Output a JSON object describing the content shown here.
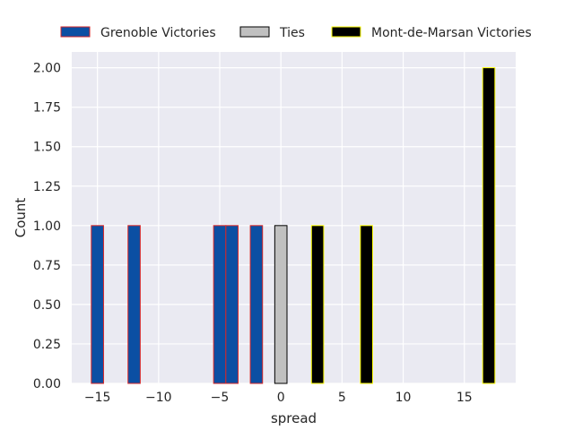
{
  "chart_data": {
    "type": "bar",
    "xlabel": "spread",
    "ylabel": "Count",
    "xlim": [
      -17.1,
      19.2
    ],
    "ylim": [
      0,
      2.1
    ],
    "grid": true,
    "legend_placement": "top-center (above plot)",
    "x_ticks": [
      -15,
      -10,
      -5,
      0,
      5,
      10,
      15
    ],
    "x_tick_labels": [
      "−15",
      "−10",
      "−5",
      "0",
      "5",
      "10",
      "15"
    ],
    "y_ticks": [
      0,
      0.25,
      0.5,
      0.75,
      1.0,
      1.25,
      1.5,
      1.75,
      2.0
    ],
    "y_tick_labels": [
      "0.00",
      "0.25",
      "0.50",
      "0.75",
      "1.00",
      "1.25",
      "1.50",
      "1.75",
      "2.00"
    ],
    "bin_width": 1.0,
    "series": [
      {
        "name": "Grenoble Victories",
        "color": "#0b4fa3",
        "edge_color": "#d62728",
        "bins": [
          {
            "x": -15,
            "count": 1
          },
          {
            "x": -12,
            "count": 1
          },
          {
            "x": -5,
            "count": 1
          },
          {
            "x": -4,
            "count": 1
          },
          {
            "x": -2,
            "count": 1
          }
        ]
      },
      {
        "name": "Ties",
        "color": "#c0c0c0",
        "edge_color": "#000000",
        "bins": [
          {
            "x": 0,
            "count": 1
          }
        ]
      },
      {
        "name": "Mont-de-Marsan Victories",
        "color": "#000000",
        "edge_color": "#ffff00",
        "bins": [
          {
            "x": 3,
            "count": 1
          },
          {
            "x": 7,
            "count": 1
          },
          {
            "x": 17,
            "count": 2
          }
        ]
      }
    ]
  },
  "colors": {
    "plot_background": "#eaeaf2",
    "grid": "#ffffff",
    "text": "#262626"
  }
}
